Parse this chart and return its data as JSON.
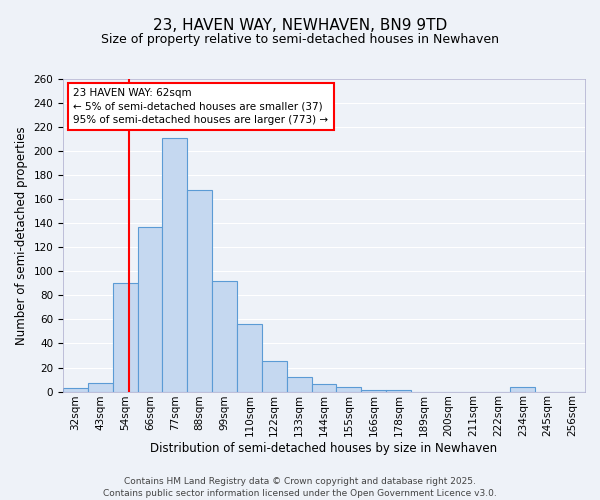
{
  "title": "23, HAVEN WAY, NEWHAVEN, BN9 9TD",
  "subtitle": "Size of property relative to semi-detached houses in Newhaven",
  "xlabel": "Distribution of semi-detached houses by size in Newhaven",
  "ylabel": "Number of semi-detached properties",
  "bin_labels": [
    "32sqm",
    "43sqm",
    "54sqm",
    "66sqm",
    "77sqm",
    "88sqm",
    "99sqm",
    "110sqm",
    "122sqm",
    "133sqm",
    "144sqm",
    "155sqm",
    "166sqm",
    "178sqm",
    "189sqm",
    "200sqm",
    "211sqm",
    "222sqm",
    "234sqm",
    "245sqm",
    "256sqm"
  ],
  "bar_values": [
    3,
    7,
    90,
    137,
    211,
    168,
    92,
    56,
    25,
    12,
    6,
    4,
    1,
    1,
    0,
    0,
    0,
    0,
    4,
    0,
    0
  ],
  "bar_color": "#c5d8f0",
  "bar_edge_color": "#5b9bd5",
  "vline_color": "#ff0000",
  "annotation_title": "23 HAVEN WAY: 62sqm",
  "annotation_line1": "← 5% of semi-detached houses are smaller (37)",
  "annotation_line2": "95% of semi-detached houses are larger (773) →",
  "annotation_box_color": "#ffffff",
  "annotation_box_edge": "#ff0000",
  "ylim": [
    0,
    260
  ],
  "yticks": [
    0,
    20,
    40,
    60,
    80,
    100,
    120,
    140,
    160,
    180,
    200,
    220,
    240,
    260
  ],
  "footer1": "Contains HM Land Registry data © Crown copyright and database right 2025.",
  "footer2": "Contains public sector information licensed under the Open Government Licence v3.0.",
  "bg_color": "#eef2f8",
  "grid_color": "#ffffff",
  "title_fontsize": 11,
  "subtitle_fontsize": 9,
  "axis_label_fontsize": 8.5,
  "tick_fontsize": 7.5,
  "footer_fontsize": 6.5,
  "annotation_fontsize": 7.5
}
